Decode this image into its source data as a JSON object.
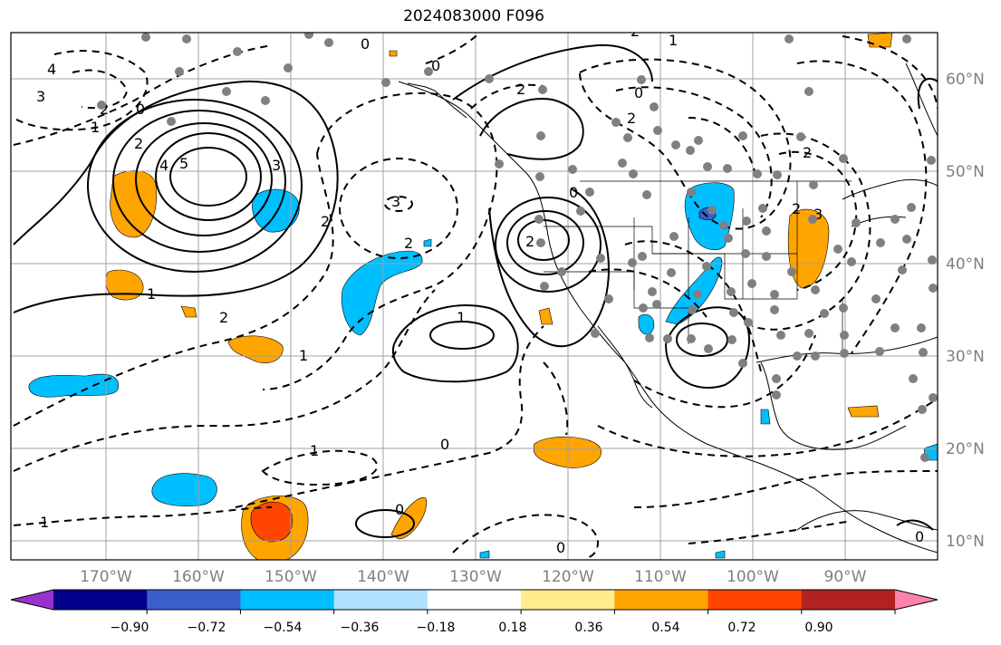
{
  "title": "2024083000 F096",
  "lat_labels": [
    "60°N",
    "50°N",
    "40°N",
    "30°N",
    "20°N",
    "10°N"
  ],
  "lon_labels": [
    "170°W",
    "160°W",
    "150°W",
    "140°W",
    "130°W",
    "120°W",
    "110°W",
    "100°W",
    "90°W"
  ],
  "colorbar": {
    "tick_labels": [
      "−0.90",
      "−0.72",
      "−0.54",
      "−0.36",
      "−0.18",
      "0.18",
      "0.36",
      "0.54",
      "0.72",
      "0.90"
    ],
    "colors": [
      "#9932cc",
      "#00008b",
      "#3a5fcd",
      "#00bfff",
      "#b0e2ff",
      "#ffffff",
      "#ffec8b",
      "#ffa500",
      "#ff4500",
      "#b22222",
      "#ff82ab"
    ]
  },
  "contour_labels": [
    "4",
    "3",
    "2",
    "1",
    "0",
    "2",
    "4",
    "5",
    "3",
    "1",
    "2",
    "3",
    "2",
    "1",
    "2",
    "0",
    "0",
    "2",
    "2",
    "2",
    "0",
    "1",
    "0",
    "2",
    "1",
    "0",
    "1",
    "2",
    "0",
    "1",
    "0",
    "0",
    "2",
    "3"
  ],
  "colors": {
    "contour": "#000000",
    "grid": "#a0a0a0",
    "coast": "#000000"
  }
}
